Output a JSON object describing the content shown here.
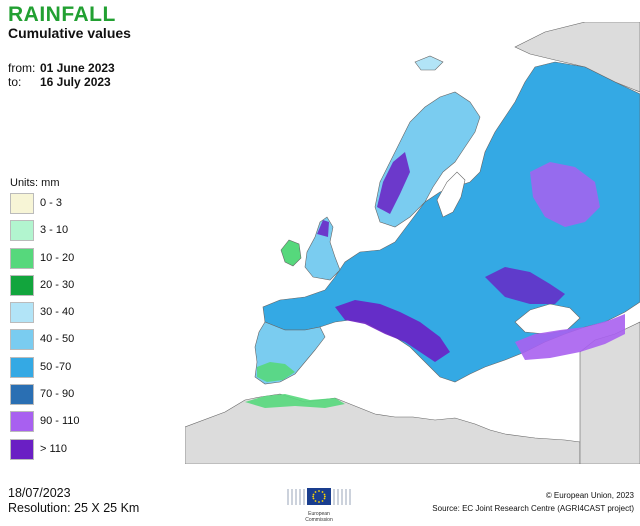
{
  "title": "RAINFALL",
  "subtitle": "Cumulative values",
  "period": {
    "from_label": "from:",
    "from_value": "01 June 2023",
    "to_label": "to:",
    "to_value": "16 July 2023"
  },
  "legend": {
    "units": "Units: mm",
    "classes": [
      {
        "label": "0 - 3",
        "color": "#f7f5d6"
      },
      {
        "label": "3 - 10",
        "color": "#b2f5cf"
      },
      {
        "label": "10 - 20",
        "color": "#56d87c"
      },
      {
        "label": "20 - 30",
        "color": "#12a53d"
      },
      {
        "label": "30 - 40",
        "color": "#b2e4f7"
      },
      {
        "label": "40 - 50",
        "color": "#7accf0"
      },
      {
        "label": "50 -70",
        "color": "#34a9e4"
      },
      {
        "label": "70 - 90",
        "color": "#2a6fb3"
      },
      {
        "label": "90 - 110",
        "color": "#a860f0"
      },
      {
        "label": "> 110",
        "color": "#6a1fc4"
      }
    ]
  },
  "map_colors": {
    "sea": "#ffffff",
    "no_data_land": "#dcdcdc",
    "coast": "#666666"
  },
  "footer": {
    "date": "18/07/2023",
    "resolution": "Resolution: 25 X 25 Km",
    "copyright": "© European Union, 2023",
    "source": "Source: EC Joint Research Centre (AGRI4CAST project)",
    "logo_line1": "European",
    "logo_line2": "Commission"
  }
}
